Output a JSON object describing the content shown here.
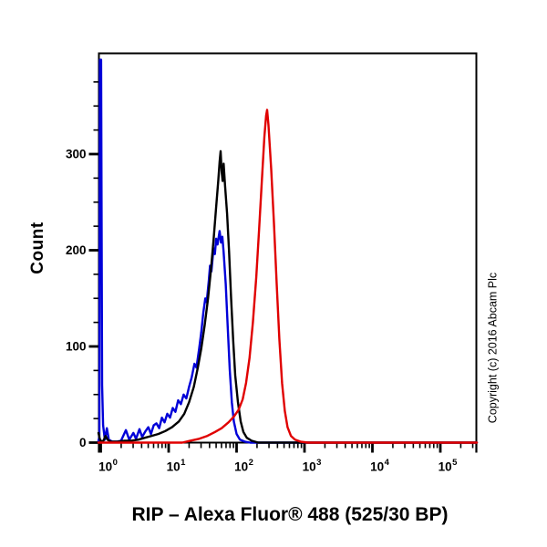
{
  "figure": {
    "background": "#ffffff",
    "frame_color": "#000000"
  },
  "title": {
    "text": "RIP – Alexa Fluor® 488  (525/30 BP)"
  },
  "y_axis_label": "Count",
  "copyright_text": "Copyright (c) 2016 Abcam Plc",
  "chart_data": {
    "type": "line",
    "subtype": "flow-cytometry-histogram-overlay",
    "title": "RIP – Alexa Fluor® 488  (525/30 BP)",
    "xlabel": "RIP – Alexa Fluor® 488  (525/30 BP)",
    "ylabel": "Count",
    "x_scale": "log10",
    "xlim_log10": [
      -0.034,
      5.537
    ],
    "ylim": [
      0,
      405
    ],
    "grid": false,
    "legend": "none",
    "x_major_ticks": [
      {
        "exponent": "0",
        "base": "10"
      },
      {
        "exponent": "1",
        "base": "10"
      },
      {
        "exponent": "2",
        "base": "10"
      },
      {
        "exponent": "3",
        "base": "10"
      },
      {
        "exponent": "4",
        "base": "10"
      },
      {
        "exponent": "5",
        "base": "10"
      }
    ],
    "y_major_ticks": [
      0,
      100,
      200,
      300
    ],
    "y_minor_tick_step": 25,
    "y_minor_tick_max": 375,
    "series": [
      {
        "name": "blue-curve",
        "color": "#0000d8",
        "peak_value_x": 44,
        "peak_count": 220,
        "edge_spike_count": 398,
        "points_log10x_count": [
          [
            -0.034,
            2
          ],
          [
            -0.02,
            6
          ],
          [
            -0.012,
            398
          ],
          [
            0.005,
            398
          ],
          [
            0.02,
            60
          ],
          [
            0.035,
            18
          ],
          [
            0.06,
            3
          ],
          [
            0.09,
            15
          ],
          [
            0.12,
            3
          ],
          [
            0.17,
            1
          ],
          [
            0.24,
            1
          ],
          [
            0.3,
            2
          ],
          [
            0.37,
            13
          ],
          [
            0.42,
            3
          ],
          [
            0.48,
            10
          ],
          [
            0.52,
            4
          ],
          [
            0.57,
            14
          ],
          [
            0.61,
            6
          ],
          [
            0.66,
            12
          ],
          [
            0.7,
            16
          ],
          [
            0.74,
            9
          ],
          [
            0.78,
            18
          ],
          [
            0.82,
            20
          ],
          [
            0.86,
            15
          ],
          [
            0.9,
            26
          ],
          [
            0.94,
            21
          ],
          [
            0.98,
            30
          ],
          [
            1.02,
            26
          ],
          [
            1.06,
            36
          ],
          [
            1.1,
            32
          ],
          [
            1.14,
            44
          ],
          [
            1.18,
            40
          ],
          [
            1.22,
            50
          ],
          [
            1.26,
            46
          ],
          [
            1.3,
            58
          ],
          [
            1.34,
            68
          ],
          [
            1.38,
            82
          ],
          [
            1.41,
            78
          ],
          [
            1.45,
            98
          ],
          [
            1.48,
            115
          ],
          [
            1.51,
            135
          ],
          [
            1.54,
            150
          ],
          [
            1.56,
            146
          ],
          [
            1.59,
            168
          ],
          [
            1.61,
            184
          ],
          [
            1.63,
            178
          ],
          [
            1.66,
            202
          ],
          [
            1.68,
            196
          ],
          [
            1.7,
            212
          ],
          [
            1.72,
            206
          ],
          [
            1.75,
            220
          ],
          [
            1.77,
            208
          ],
          [
            1.79,
            214
          ],
          [
            1.81,
            198
          ],
          [
            1.84,
            165
          ],
          [
            1.87,
            120
          ],
          [
            1.9,
            76
          ],
          [
            1.93,
            42
          ],
          [
            1.96,
            22
          ],
          [
            2.0,
            9
          ],
          [
            2.05,
            3
          ],
          [
            2.12,
            1
          ],
          [
            2.2,
            0
          ],
          [
            5.537,
            0
          ]
        ]
      },
      {
        "name": "black-curve",
        "color": "#000000",
        "peak_value_x": 58,
        "peak_count": 303,
        "points_log10x_count": [
          [
            -0.034,
            10
          ],
          [
            -0.015,
            4
          ],
          [
            0.01,
            1
          ],
          [
            0.04,
            2
          ],
          [
            0.07,
            7
          ],
          [
            0.1,
            3
          ],
          [
            0.15,
            1
          ],
          [
            0.25,
            1
          ],
          [
            0.35,
            2
          ],
          [
            0.45,
            2
          ],
          [
            0.55,
            3
          ],
          [
            0.65,
            5
          ],
          [
            0.75,
            7
          ],
          [
            0.85,
            9
          ],
          [
            0.95,
            12
          ],
          [
            1.05,
            16
          ],
          [
            1.15,
            22
          ],
          [
            1.23,
            30
          ],
          [
            1.3,
            42
          ],
          [
            1.37,
            58
          ],
          [
            1.43,
            78
          ],
          [
            1.48,
            98
          ],
          [
            1.53,
            122
          ],
          [
            1.58,
            150
          ],
          [
            1.62,
            178
          ],
          [
            1.66,
            210
          ],
          [
            1.7,
            245
          ],
          [
            1.73,
            272
          ],
          [
            1.75,
            292
          ],
          [
            1.765,
            303
          ],
          [
            1.78,
            282
          ],
          [
            1.795,
            272
          ],
          [
            1.81,
            290
          ],
          [
            1.83,
            268
          ],
          [
            1.86,
            238
          ],
          [
            1.89,
            198
          ],
          [
            1.92,
            150
          ],
          [
            1.95,
            106
          ],
          [
            1.98,
            70
          ],
          [
            2.02,
            42
          ],
          [
            2.06,
            22
          ],
          [
            2.1,
            11
          ],
          [
            2.15,
            5
          ],
          [
            2.22,
            2
          ],
          [
            2.32,
            0
          ],
          [
            5.537,
            0
          ]
        ]
      },
      {
        "name": "red-curve",
        "color": "#e00000",
        "peak_value_x": 280,
        "peak_count": 346,
        "points_log10x_count": [
          [
            -0.034,
            0
          ],
          [
            1.2,
            0
          ],
          [
            1.32,
            2
          ],
          [
            1.45,
            4
          ],
          [
            1.57,
            7
          ],
          [
            1.68,
            11
          ],
          [
            1.78,
            15
          ],
          [
            1.88,
            21
          ],
          [
            1.96,
            27
          ],
          [
            2.03,
            34
          ],
          [
            2.09,
            45
          ],
          [
            2.14,
            62
          ],
          [
            2.19,
            88
          ],
          [
            2.24,
            125
          ],
          [
            2.29,
            172
          ],
          [
            2.33,
            220
          ],
          [
            2.37,
            270
          ],
          [
            2.41,
            318
          ],
          [
            2.435,
            340
          ],
          [
            2.45,
            346
          ],
          [
            2.47,
            330
          ],
          [
            2.51,
            284
          ],
          [
            2.55,
            228
          ],
          [
            2.59,
            165
          ],
          [
            2.63,
            108
          ],
          [
            2.67,
            62
          ],
          [
            2.71,
            33
          ],
          [
            2.75,
            16
          ],
          [
            2.8,
            7
          ],
          [
            2.86,
            3
          ],
          [
            2.94,
            1
          ],
          [
            3.05,
            0
          ],
          [
            5.537,
            0
          ]
        ]
      }
    ]
  }
}
